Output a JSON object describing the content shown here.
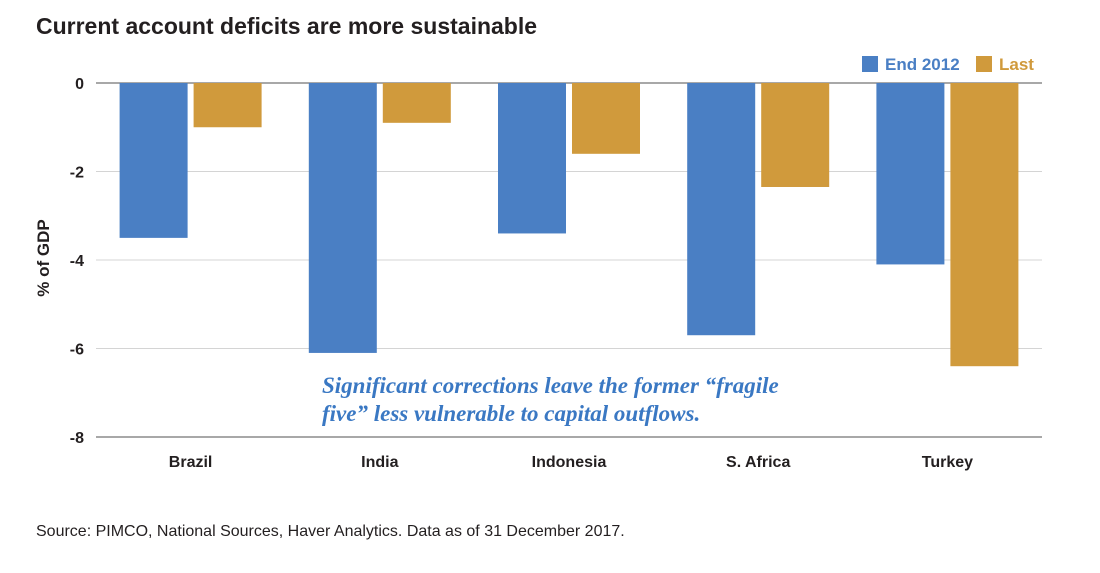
{
  "title": "Current account deficits are more sustainable",
  "source": "Source: PIMCO, National Sources, Haver Analytics. Data as of 31 December 2017.",
  "colors": {
    "end2012": "#4a7fc4",
    "last": "#d09a3c",
    "grid": "#d4d4d4",
    "axis": "#8c8c8c",
    "annotation": "#3a78c3"
  },
  "chart_data": {
    "type": "bar",
    "title": "Current account deficits are more sustainable",
    "xlabel": "",
    "ylabel": "% of GDP",
    "ylim": [
      -8,
      0
    ],
    "yticks": [
      0,
      -2,
      -4,
      -6,
      -8
    ],
    "grid": true,
    "legend_position": "top-right",
    "categories": [
      "Brazil",
      "India",
      "Indonesia",
      "S. Africa",
      "Turkey"
    ],
    "series": [
      {
        "name": "End 2012",
        "values": [
          -3.5,
          -6.1,
          -3.4,
          -5.7,
          -4.1
        ]
      },
      {
        "name": "Last",
        "values": [
          -1.0,
          -0.9,
          -1.6,
          -2.35,
          -6.4
        ]
      }
    ],
    "annotation": [
      "Significant corrections leave the former “fragile",
      "five” less vulnerable to capital outflows."
    ]
  }
}
